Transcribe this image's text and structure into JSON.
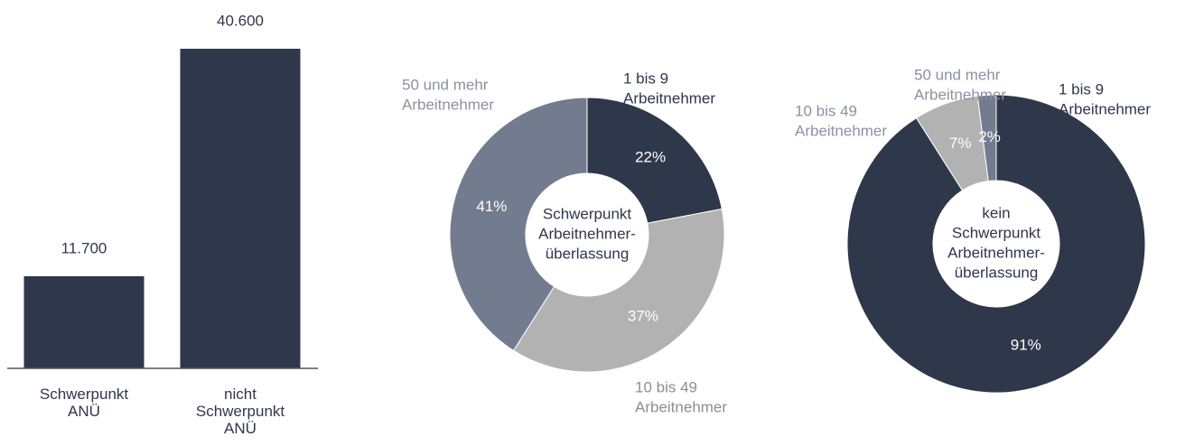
{
  "chart_data": [
    {
      "type": "bar",
      "categories": [
        "Schwerpunkt ANÜ",
        "nicht Schwerpunkt ANÜ"
      ],
      "values": [
        11700,
        40600
      ],
      "value_labels": [
        "11.700",
        "40.600"
      ],
      "color": "#2f374b"
    },
    {
      "type": "donut",
      "labels": [
        [
          "1 bis 9",
          "Arbeitnehmer"
        ],
        [
          "10 bis 49",
          "Arbeitnehmer"
        ],
        [
          "50 und mehr",
          "Arbeitnehmer"
        ]
      ],
      "values": [
        22,
        37,
        41
      ],
      "value_labels": [
        "22%",
        "37%",
        "41%"
      ],
      "colors": [
        "#2f374b",
        "#b2b2b2",
        "#737c8f"
      ],
      "center_label": [
        "Schwerpunkt",
        "Arbeitnehmer-",
        "überlassung"
      ]
    },
    {
      "type": "donut",
      "labels": [
        [
          "1 bis 9",
          "Arbeitnehmer"
        ],
        [
          "10 bis 49",
          "Arbeitnehmer"
        ],
        [
          "50 und mehr",
          "Arbeitnehmer"
        ]
      ],
      "values": [
        91,
        7,
        2
      ],
      "value_labels": [
        "91%",
        "7%",
        "2%"
      ],
      "colors": [
        "#2f374b",
        "#b2b2b2",
        "#737c8f"
      ],
      "center_label": [
        "kein",
        "Schwerpunkt",
        "Arbeitnehmer-",
        "überlassung"
      ]
    }
  ]
}
